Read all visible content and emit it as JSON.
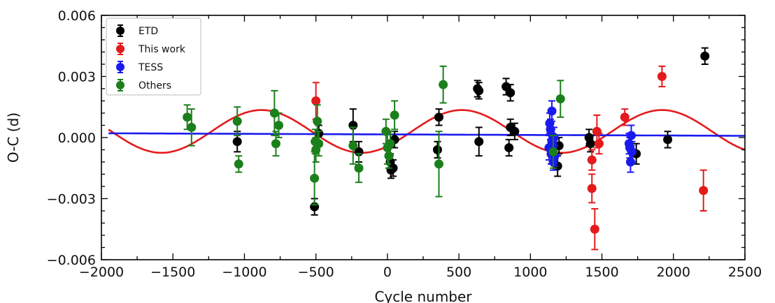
{
  "chart_data": {
    "type": "scatter",
    "xlabel": "Cycle number",
    "ylabel": "O-C (d)",
    "xlim": [
      -2000,
      2500
    ],
    "ylim": [
      -0.006,
      0.006
    ],
    "xticks": [
      -2000,
      -1500,
      -1000,
      -500,
      0,
      500,
      1000,
      1500,
      2000,
      2500
    ],
    "xtick_labels": [
      "−2000",
      "−1500",
      "−1000",
      "−500",
      "0",
      "500",
      "1000",
      "1500",
      "2000",
      "2500"
    ],
    "yticks": [
      -0.006,
      -0.003,
      0.0,
      0.003,
      0.006
    ],
    "ytick_labels": [
      "−0.006",
      "−0.003",
      "0.000",
      "0.003",
      "0.006"
    ],
    "grid": false,
    "legend_position": "top-left",
    "series": [
      {
        "name": "ETD",
        "color": "#000000",
        "points": [
          {
            "x": -1050,
            "y": -0.0002,
            "err": 0.0005
          },
          {
            "x": -510,
            "y": -0.0034,
            "err": 0.0004
          },
          {
            "x": -480,
            "y": 0.0002,
            "err": 0.0004
          },
          {
            "x": -240,
            "y": 0.0006,
            "err": 0.0008
          },
          {
            "x": -200,
            "y": -0.0007,
            "err": 0.0005
          },
          {
            "x": 20,
            "y": -0.0012,
            "err": 0.0004
          },
          {
            "x": 25,
            "y": -0.0016,
            "err": 0.0004
          },
          {
            "x": 40,
            "y": -0.0015,
            "err": 0.0004
          },
          {
            "x": 50,
            "y": -0.0001,
            "err": 0.0004
          },
          {
            "x": 350,
            "y": -0.0006,
            "err": 0.0004
          },
          {
            "x": 360,
            "y": 0.001,
            "err": 0.0004
          },
          {
            "x": 630,
            "y": 0.0024,
            "err": 0.0004
          },
          {
            "x": 640,
            "y": 0.0023,
            "err": 0.0004
          },
          {
            "x": 640,
            "y": -0.0002,
            "err": 0.0007
          },
          {
            "x": 830,
            "y": 0.0025,
            "err": 0.0004
          },
          {
            "x": 860,
            "y": 0.0022,
            "err": 0.0004
          },
          {
            "x": 850,
            "y": -0.0005,
            "err": 0.0004
          },
          {
            "x": 860,
            "y": 0.0005,
            "err": 0.0004
          },
          {
            "x": 890,
            "y": 0.0003,
            "err": 0.0004
          },
          {
            "x": 1190,
            "y": -0.0014,
            "err": 0.0005
          },
          {
            "x": 1200,
            "y": -0.0004,
            "err": 0.0004
          },
          {
            "x": 1410,
            "y": 0.0,
            "err": 0.0004
          },
          {
            "x": 1420,
            "y": -0.0003,
            "err": 0.0004
          },
          {
            "x": 1740,
            "y": -0.0008,
            "err": 0.0005
          },
          {
            "x": 1960,
            "y": -0.0001,
            "err": 0.0004
          },
          {
            "x": 2220,
            "y": 0.004,
            "err": 0.0004
          }
        ]
      },
      {
        "name": "This work",
        "color": "#e41a1c",
        "points": [
          {
            "x": -500,
            "y": 0.0018,
            "err": 0.0009
          },
          {
            "x": 1430,
            "y": -0.0011,
            "err": 0.0005
          },
          {
            "x": 1430,
            "y": -0.0025,
            "err": 0.0007
          },
          {
            "x": 1450,
            "y": -0.0045,
            "err": 0.001
          },
          {
            "x": 1465,
            "y": 0.0003,
            "err": 0.0008
          },
          {
            "x": 1480,
            "y": -0.0003,
            "err": 0.0005
          },
          {
            "x": 1660,
            "y": 0.001,
            "err": 0.0004
          },
          {
            "x": 1920,
            "y": 0.003,
            "err": 0.0005
          },
          {
            "x": 2210,
            "y": -0.0026,
            "err": 0.001
          }
        ]
      },
      {
        "name": "TESS",
        "color": "#1a1aee",
        "points": [
          {
            "x": 1130,
            "y": -0.0005,
            "err": 0.0006
          },
          {
            "x": 1140,
            "y": 0.0004,
            "err": 0.0005
          },
          {
            "x": 1145,
            "y": -0.0008,
            "err": 0.0005
          },
          {
            "x": 1150,
            "y": 0.0013,
            "err": 0.0005
          },
          {
            "x": 1155,
            "y": -0.0003,
            "err": 0.0005
          },
          {
            "x": 1160,
            "y": -0.0012,
            "err": 0.0004
          },
          {
            "x": 1165,
            "y": 0.0,
            "err": 0.0005
          },
          {
            "x": 1170,
            "y": -0.0009,
            "err": 0.0005
          },
          {
            "x": 1135,
            "y": 0.0007,
            "err": 0.0005
          },
          {
            "x": 1150,
            "y": -0.0002,
            "err": 0.0006
          },
          {
            "x": 1690,
            "y": -0.0003,
            "err": 0.0005
          },
          {
            "x": 1700,
            "y": -0.0012,
            "err": 0.0005
          },
          {
            "x": 1705,
            "y": 0.0001,
            "err": 0.0005
          },
          {
            "x": 1710,
            "y": -0.0007,
            "err": 0.0005
          },
          {
            "x": 1695,
            "y": -0.0005,
            "err": 0.0005
          }
        ]
      },
      {
        "name": "Others",
        "color": "#1b7f1b",
        "points": [
          {
            "x": -1400,
            "y": 0.001,
            "err": 0.0006
          },
          {
            "x": -1370,
            "y": 0.0005,
            "err": 0.0009
          },
          {
            "x": -1050,
            "y": 0.0008,
            "err": 0.0007
          },
          {
            "x": -1040,
            "y": -0.0013,
            "err": 0.0004
          },
          {
            "x": -790,
            "y": 0.0012,
            "err": 0.0011
          },
          {
            "x": -780,
            "y": -0.0003,
            "err": 0.0006
          },
          {
            "x": -760,
            "y": 0.0006,
            "err": 0.0006
          },
          {
            "x": -510,
            "y": -0.002,
            "err": 0.0013
          },
          {
            "x": -505,
            "y": -0.0002,
            "err": 0.0006
          },
          {
            "x": -500,
            "y": -0.0006,
            "err": 0.0006
          },
          {
            "x": -490,
            "y": 0.0008,
            "err": 0.0008
          },
          {
            "x": -480,
            "y": -0.0003,
            "err": 0.0006
          },
          {
            "x": -240,
            "y": -0.0004,
            "err": 0.0009
          },
          {
            "x": -200,
            "y": -0.0015,
            "err": 0.0007
          },
          {
            "x": -10,
            "y": 0.0003,
            "err": 0.0006
          },
          {
            "x": 0,
            "y": -0.0005,
            "err": 0.0008
          },
          {
            "x": 10,
            "y": -0.0009,
            "err": 0.0006
          },
          {
            "x": 20,
            "y": -0.0003,
            "err": 0.0006
          },
          {
            "x": 50,
            "y": 0.0011,
            "err": 0.0007
          },
          {
            "x": 360,
            "y": -0.0013,
            "err": 0.0016
          },
          {
            "x": 390,
            "y": 0.0026,
            "err": 0.0009
          },
          {
            "x": 1160,
            "y": -0.0007,
            "err": 0.0008
          },
          {
            "x": 1210,
            "y": 0.0019,
            "err": 0.0009
          }
        ]
      }
    ],
    "curves": [
      {
        "color": "#e41a1c",
        "model": "sinusoid",
        "amplitude": 0.00105,
        "period_cycles": 1400,
        "peak_cycle": 520,
        "offset": 0.0003,
        "x_range": [
          -1950,
          2500
        ]
      },
      {
        "color": "#1a1aee",
        "model": "linear",
        "slope": -2.78e-08,
        "intercept": 0.000154,
        "x_range": [
          -1950,
          2500
        ]
      }
    ]
  }
}
